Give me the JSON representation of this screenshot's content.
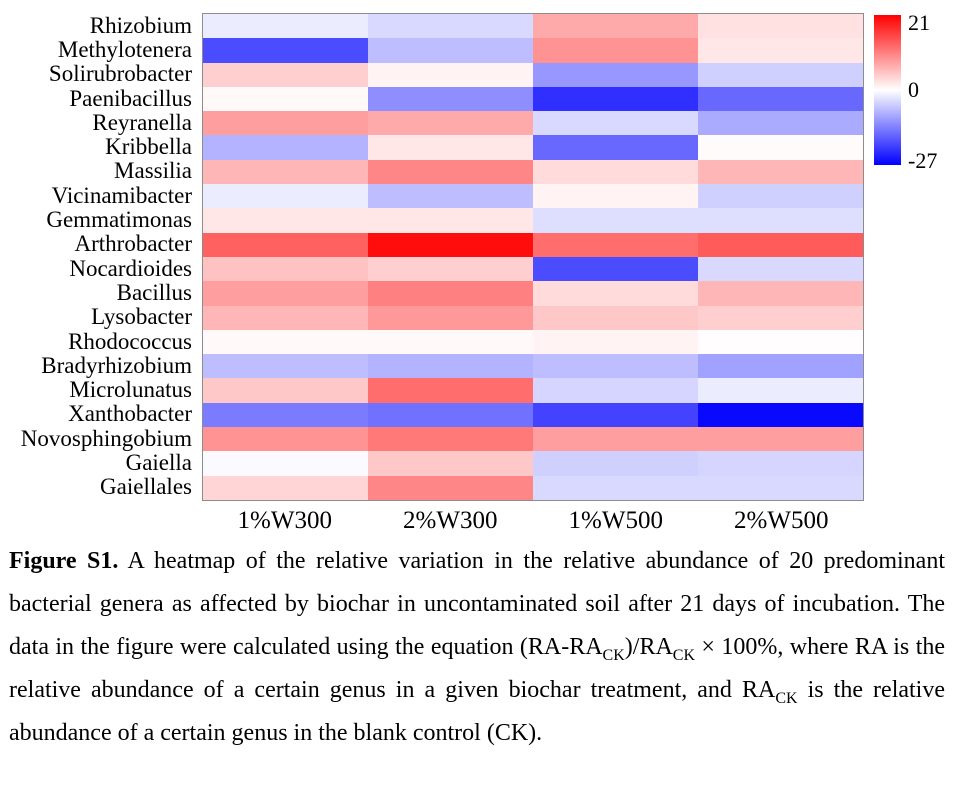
{
  "chart_data": {
    "type": "heatmap",
    "rows": [
      "Rhizobium",
      "Methylotenera",
      "Solirubrobacter",
      "Paenibacillus",
      "Reyranella",
      "Kribbella",
      "Massilia",
      "Vicinamibacter",
      "Gemmatimonas",
      "Arthrobacter",
      "Nocardioides",
      "Bacillus",
      "Lysobacter",
      "Rhodococcus",
      "Bradyrhizobium",
      "Microlunatus",
      "Xanthobacter",
      "Novosphingobium",
      "Gaiella",
      "Gaiellales"
    ],
    "columns": [
      "1%W300",
      "2%W300",
      "1%W500",
      "2%W500"
    ],
    "values": [
      [
        -2,
        -4,
        7,
        2.5
      ],
      [
        -19,
        -7,
        9,
        2
      ],
      [
        4,
        1,
        -11,
        -5
      ],
      [
        0.5,
        -12,
        -22,
        -16
      ],
      [
        8,
        7,
        -4,
        -9
      ],
      [
        -8,
        2,
        -16,
        0.3
      ],
      [
        6,
        10,
        3,
        6
      ],
      [
        -2,
        -7,
        1,
        -5
      ],
      [
        2,
        2,
        -3.5,
        -3.5
      ],
      [
        13,
        20,
        12,
        13.5
      ],
      [
        5,
        4,
        -19,
        -4
      ],
      [
        8,
        10.5,
        3,
        6
      ],
      [
        6,
        8.5,
        4.5,
        4
      ],
      [
        0.5,
        0.5,
        1,
        0.2
      ],
      [
        -7,
        -8,
        -7,
        -10
      ],
      [
        4.5,
        12,
        -4.5,
        -2
      ],
      [
        -14,
        -15,
        -20,
        -26
      ],
      [
        9,
        11,
        8,
        8
      ],
      [
        -0.5,
        4.5,
        -5,
        -4.5
      ],
      [
        3.5,
        10,
        -4,
        -4
      ]
    ],
    "vmin": -27,
    "vmax": 21,
    "colorbar_ticks": [
      "21",
      "0",
      "-27"
    ],
    "colormap": {
      "positive": "#ff0000",
      "zero": "#ffffff",
      "negative": "#0000ff"
    },
    "grid_border_color": "#8c8c8c",
    "legend_position": "right-colorbar",
    "title": "",
    "xlabel": "",
    "ylabel": ""
  },
  "caption": {
    "label": "Figure S1.",
    "t1": " A heatmap of the relative variation in the relative abundance of 20 predominant bacterial genera as affected by biochar in uncontaminated soil after 21 days of incubation. The data in the figure were calculated using the equation (RA-RA",
    "sub1": "CK",
    "t2": ")/RA",
    "sub2": "CK",
    "t3": " × 100%, where RA is the relative abundance of a certain genus in a given biochar treatment, and RA",
    "sub3": "CK",
    "t4": " is the relative abundance of a certain genus in the blank control (CK)."
  }
}
